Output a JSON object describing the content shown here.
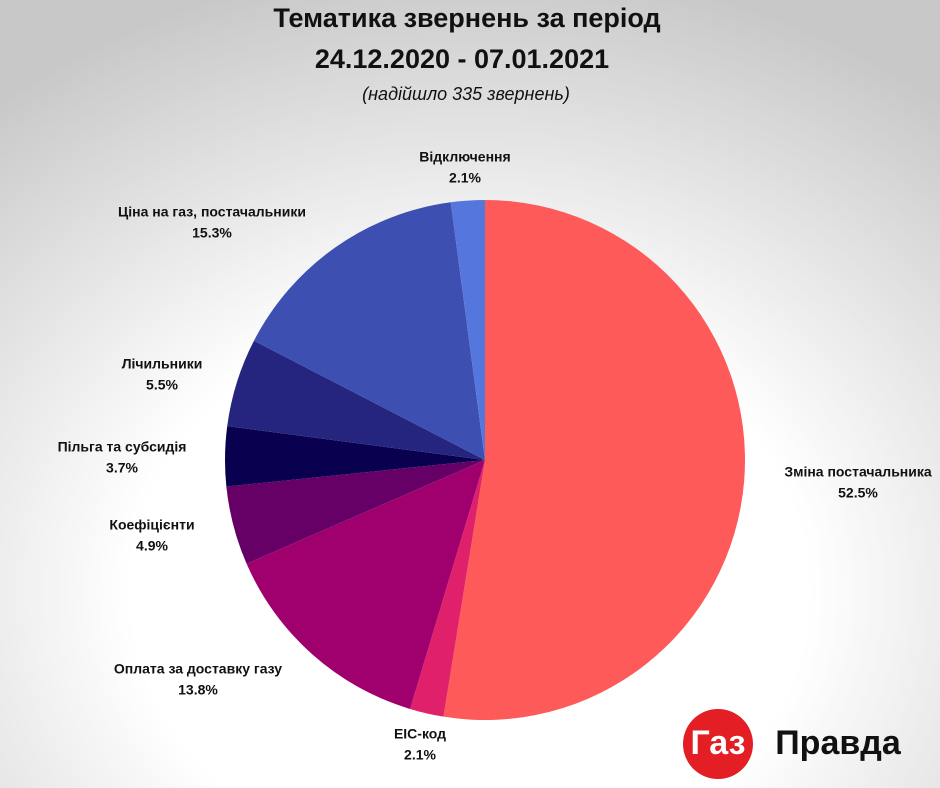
{
  "chart_data": {
    "type": "pie",
    "title": "Тематика звернень за період",
    "subtitle": "24.12.2020 - 07.01.2021",
    "note": "(надійшло 335 звернень)",
    "categories": [
      "Зміна постачальника",
      "EIC-код",
      "Оплата за доставку газу",
      "Коефіцієнти",
      "Пільга та субсидія",
      "Лічильники",
      "Ціна на газ, постачальники",
      "Відключення"
    ],
    "values": [
      52.5,
      2.1,
      13.8,
      4.9,
      3.7,
      5.5,
      15.3,
      2.1
    ],
    "value_labels": [
      "52.5%",
      "2.1%",
      "13.8%",
      "4.9%",
      "3.7%",
      "5.5%",
      "15.3%",
      "2.1%"
    ],
    "colors": [
      "#ff5a5a",
      "#e0206a",
      "#a0006e",
      "#660066",
      "#0a0050",
      "#252580",
      "#3d4fb0",
      "#5577dd"
    ]
  },
  "logo": {
    "left": "Газ",
    "right": "Правда"
  }
}
